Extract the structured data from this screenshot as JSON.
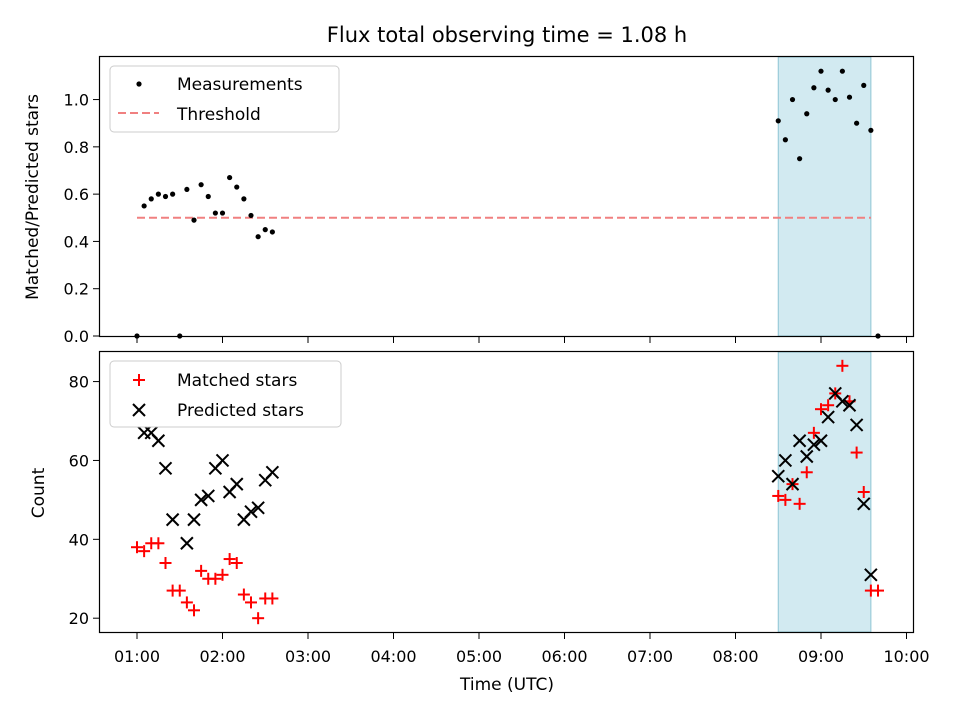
{
  "chart_data": [
    {
      "type": "scatter",
      "title": "Flux total observing time = 1.08 h",
      "xlabel": "",
      "ylabel": "Matched/Predicted stars",
      "ylim": [
        0.0,
        1.18
      ],
      "yticks": [
        "0.0",
        "0.2",
        "0.4",
        "0.6",
        "0.8",
        "1.0"
      ],
      "grid": false,
      "legend_position": "top-left",
      "highlight_span": {
        "x_start": "08:30",
        "x_end": "09:35",
        "color": "#add8e6"
      },
      "series": [
        {
          "name": "Measurements",
          "marker": "dot",
          "color": "#000000",
          "points": [
            [
              "01:00",
              0.0
            ],
            [
              "01:05",
              0.55
            ],
            [
              "01:10",
              0.58
            ],
            [
              "01:15",
              0.6
            ],
            [
              "01:20",
              0.59
            ],
            [
              "01:25",
              0.6
            ],
            [
              "01:30",
              0.0
            ],
            [
              "01:35",
              0.62
            ],
            [
              "01:40",
              0.49
            ],
            [
              "01:45",
              0.64
            ],
            [
              "01:50",
              0.59
            ],
            [
              "01:55",
              0.52
            ],
            [
              "02:00",
              0.52
            ],
            [
              "02:05",
              0.67
            ],
            [
              "02:10",
              0.63
            ],
            [
              "02:15",
              0.58
            ],
            [
              "02:20",
              0.51
            ],
            [
              "02:25",
              0.42
            ],
            [
              "02:30",
              0.45
            ],
            [
              "02:35",
              0.44
            ],
            [
              "08:30",
              0.91
            ],
            [
              "08:35",
              0.83
            ],
            [
              "08:40",
              1.0
            ],
            [
              "08:45",
              0.75
            ],
            [
              "08:50",
              0.94
            ],
            [
              "08:55",
              1.05
            ],
            [
              "09:00",
              1.12
            ],
            [
              "09:05",
              1.04
            ],
            [
              "09:10",
              1.0
            ],
            [
              "09:15",
              1.12
            ],
            [
              "09:20",
              1.01
            ],
            [
              "09:25",
              0.9
            ],
            [
              "09:30",
              1.06
            ],
            [
              "09:35",
              0.87
            ],
            [
              "09:40",
              0.0
            ]
          ]
        },
        {
          "name": "Threshold",
          "marker": "dashed-line",
          "color": "#f08080",
          "points": [
            [
              "01:00",
              0.5
            ],
            [
              "09:35",
              0.5
            ]
          ]
        }
      ]
    },
    {
      "type": "scatter",
      "xlabel": "Time (UTC)",
      "ylabel": "Count",
      "ylim": [
        16.5,
        87.5
      ],
      "yticks": [
        "20",
        "40",
        "60",
        "80"
      ],
      "xticks": [
        "01:00",
        "02:00",
        "03:00",
        "04:00",
        "05:00",
        "06:00",
        "07:00",
        "08:00",
        "09:00",
        "10:00"
      ],
      "grid": false,
      "legend_position": "top-left",
      "highlight_span": {
        "x_start": "08:30",
        "x_end": "09:35",
        "color": "#add8e6"
      },
      "series": [
        {
          "name": "Matched stars",
          "marker": "plus",
          "color": "#ff0000",
          "points": [
            [
              "01:00",
              38
            ],
            [
              "01:05",
              37
            ],
            [
              "01:10",
              39
            ],
            [
              "01:15",
              39
            ],
            [
              "01:20",
              34
            ],
            [
              "01:25",
              27
            ],
            [
              "01:30",
              27
            ],
            [
              "01:35",
              24
            ],
            [
              "01:40",
              22
            ],
            [
              "01:45",
              32
            ],
            [
              "01:50",
              30
            ],
            [
              "01:55",
              30
            ],
            [
              "02:00",
              31
            ],
            [
              "02:05",
              35
            ],
            [
              "02:10",
              34
            ],
            [
              "02:15",
              26
            ],
            [
              "02:20",
              24
            ],
            [
              "02:25",
              20
            ],
            [
              "02:30",
              25
            ],
            [
              "02:35",
              25
            ],
            [
              "08:30",
              51
            ],
            [
              "08:35",
              50
            ],
            [
              "08:40",
              54
            ],
            [
              "08:45",
              49
            ],
            [
              "08:50",
              57
            ],
            [
              "08:55",
              67
            ],
            [
              "09:00",
              73
            ],
            [
              "09:05",
              74
            ],
            [
              "09:10",
              77
            ],
            [
              "09:15",
              84
            ],
            [
              "09:20",
              75
            ],
            [
              "09:25",
              62
            ],
            [
              "09:30",
              52
            ],
            [
              "09:35",
              27
            ],
            [
              "09:40",
              27
            ]
          ]
        },
        {
          "name": "Predicted stars",
          "marker": "x",
          "color": "#000000",
          "points": [
            [
              "01:05",
              67
            ],
            [
              "01:10",
              67
            ],
            [
              "01:15",
              65
            ],
            [
              "01:20",
              58
            ],
            [
              "01:25",
              45
            ],
            [
              "01:35",
              39
            ],
            [
              "01:40",
              45
            ],
            [
              "01:45",
              50
            ],
            [
              "01:50",
              51
            ],
            [
              "01:55",
              58
            ],
            [
              "02:00",
              60
            ],
            [
              "02:05",
              52
            ],
            [
              "02:10",
              54
            ],
            [
              "02:15",
              45
            ],
            [
              "02:20",
              47
            ],
            [
              "02:25",
              48
            ],
            [
              "02:30",
              55
            ],
            [
              "02:35",
              57
            ],
            [
              "08:30",
              56
            ],
            [
              "08:35",
              60
            ],
            [
              "08:40",
              54
            ],
            [
              "08:45",
              65
            ],
            [
              "08:50",
              61
            ],
            [
              "08:55",
              64
            ],
            [
              "09:00",
              65
            ],
            [
              "09:05",
              71
            ],
            [
              "09:10",
              77
            ],
            [
              "09:15",
              75
            ],
            [
              "09:20",
              74
            ],
            [
              "09:25",
              69
            ],
            [
              "09:30",
              49
            ],
            [
              "09:35",
              31
            ]
          ]
        }
      ]
    }
  ]
}
